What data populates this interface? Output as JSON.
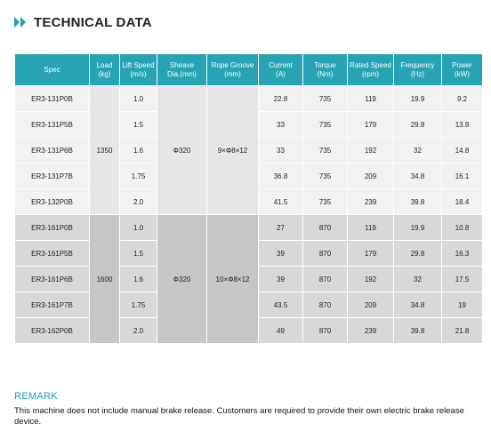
{
  "title": "TECHNICAL DATA",
  "table": {
    "headers": [
      "Spec",
      "Load\n(kg)",
      "Lift Speed\n(m/s)",
      "Sheave\nDia.(mm)",
      "Rope Groove\n(mm)",
      "Current\n(A)",
      "Torque\n(Nm)",
      "Rated Speed\n(rpm)",
      "Frequency\n(Hz)",
      "Power\n(kW)"
    ],
    "groups": [
      {
        "load": "1350",
        "sheave": "Φ320",
        "groove": "9×Φ8×12",
        "rows": [
          {
            "spec": "ER3-131P0B",
            "speed": "1.0",
            "current": "22.8",
            "torque": "735",
            "rpm": "119",
            "freq": "19.9",
            "power": "9.2"
          },
          {
            "spec": "ER3-131P5B",
            "speed": "1.5",
            "current": "33",
            "torque": "735",
            "rpm": "179",
            "freq": "29.8",
            "power": "13.8"
          },
          {
            "spec": "ER3-131P6B",
            "speed": "1.6",
            "current": "33",
            "torque": "735",
            "rpm": "192",
            "freq": "32",
            "power": "14.8"
          },
          {
            "spec": "ER3-131P7B",
            "speed": "1.75",
            "current": "36.8",
            "torque": "735",
            "rpm": "209",
            "freq": "34.8",
            "power": "16.1"
          },
          {
            "spec": "ER3-132P0B",
            "speed": "2.0",
            "current": "41.5",
            "torque": "735",
            "rpm": "239",
            "freq": "39.8",
            "power": "18.4"
          }
        ]
      },
      {
        "load": "1600",
        "sheave": "Φ320",
        "groove": "10×Φ8×12",
        "rows": [
          {
            "spec": "ER3-161P0B",
            "speed": "1.0",
            "current": "27",
            "torque": "870",
            "rpm": "119",
            "freq": "19.9",
            "power": "10.8"
          },
          {
            "spec": "ER3-161P5B",
            "speed": "1.5",
            "current": "39",
            "torque": "870",
            "rpm": "179",
            "freq": "29.8",
            "power": "16.3"
          },
          {
            "spec": "ER3-161P6B",
            "speed": "1.6",
            "current": "39",
            "torque": "870",
            "rpm": "192",
            "freq": "32",
            "power": "17.5"
          },
          {
            "spec": "ER3-161P7B",
            "speed": "1.75",
            "current": "43.5",
            "torque": "870",
            "rpm": "209",
            "freq": "34.8",
            "power": "19"
          },
          {
            "spec": "ER3-162P0B",
            "speed": "2.0",
            "current": "49",
            "torque": "870",
            "rpm": "239",
            "freq": "39.8",
            "power": "21.8"
          }
        ]
      }
    ]
  },
  "remark": {
    "title": "REMARK",
    "text": "This machine does not include manual brake release. Customers are required to provide their own electric brake release device."
  }
}
